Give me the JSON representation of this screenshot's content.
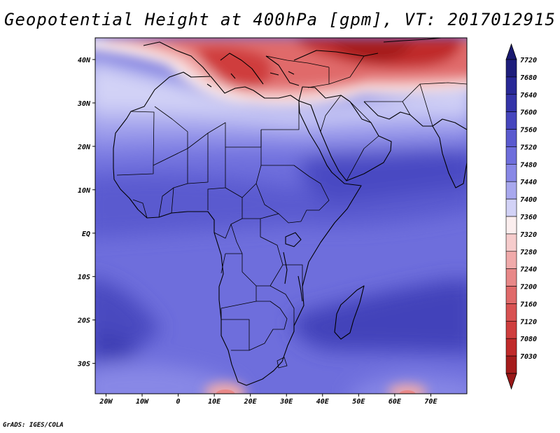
{
  "title": "Geopotential Height at 400hPa [gpm], VT: 2017012915",
  "credit": "GrADS: IGES/COLA",
  "map": {
    "variable": "Geopotential Height",
    "level": "400hPa",
    "units": "gpm",
    "valid_time": "2017012915",
    "lon_range": [
      -23,
      80
    ],
    "lat_range": [
      -37,
      45
    ],
    "lon_ticks": [
      {
        "value": -20,
        "label": "20W"
      },
      {
        "value": -10,
        "label": "10W"
      },
      {
        "value": 0,
        "label": "0"
      },
      {
        "value": 10,
        "label": "10E"
      },
      {
        "value": 20,
        "label": "20E"
      },
      {
        "value": 30,
        "label": "30E"
      },
      {
        "value": 40,
        "label": "40E"
      },
      {
        "value": 50,
        "label": "50E"
      },
      {
        "value": 60,
        "label": "60E"
      },
      {
        "value": 70,
        "label": "70E"
      }
    ],
    "lat_ticks": [
      {
        "value": 40,
        "label": "40N"
      },
      {
        "value": 30,
        "label": "30N"
      },
      {
        "value": 20,
        "label": "20N"
      },
      {
        "value": 10,
        "label": "10N"
      },
      {
        "value": 0,
        "label": "EQ"
      },
      {
        "value": -10,
        "label": "10S"
      },
      {
        "value": -20,
        "label": "20S"
      },
      {
        "value": -30,
        "label": "30S"
      }
    ]
  },
  "colorbar": {
    "levels": [
      {
        "label": "7720",
        "color": "#1e1e7c"
      },
      {
        "label": "7680",
        "color": "#282896"
      },
      {
        "label": "7640",
        "color": "#3434a8"
      },
      {
        "label": "7600",
        "color": "#4646be"
      },
      {
        "label": "7560",
        "color": "#5a5acf"
      },
      {
        "label": "7520",
        "color": "#6e6edc"
      },
      {
        "label": "7480",
        "color": "#8888e6"
      },
      {
        "label": "7440",
        "color": "#a8a8ee"
      },
      {
        "label": "7400",
        "color": "#d2d2f6"
      },
      {
        "label": "7360",
        "color": "#fbeeee"
      },
      {
        "label": "7320",
        "color": "#f6cccc"
      },
      {
        "label": "7280",
        "color": "#f0aaaa"
      },
      {
        "label": "7240",
        "color": "#e88888"
      },
      {
        "label": "7200",
        "color": "#e06a6a"
      },
      {
        "label": "7160",
        "color": "#d85252"
      },
      {
        "label": "7120",
        "color": "#cf3e3e"
      },
      {
        "label": "7080",
        "color": "#c02a2a"
      },
      {
        "label": "7030",
        "color": "#a51c1c"
      }
    ],
    "top_arrow_color": "#1a1a70",
    "bottom_arrow_color": "#991818"
  }
}
